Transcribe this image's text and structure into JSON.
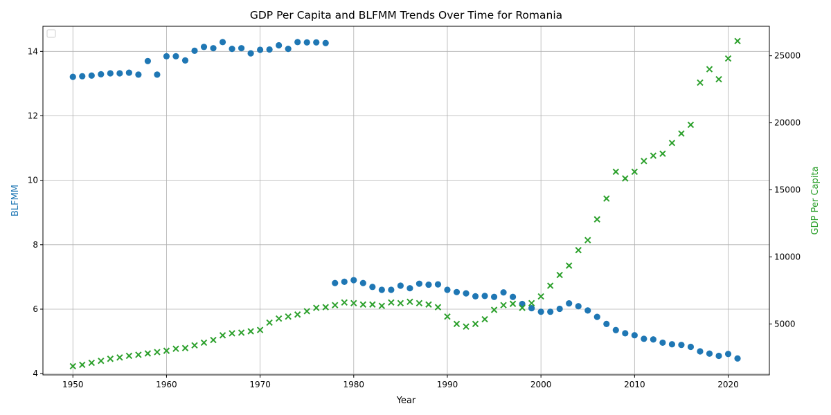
{
  "chart_data": {
    "type": "scatter",
    "title": "GDP Per Capita and BLFMM Trends Over Time for Romania",
    "xlabel": "Year",
    "ylabel_left": "BLFMM",
    "ylabel_right": "GDP Per Capita",
    "x_range": [
      1946.8,
      2024.4
    ],
    "y_left_range": [
      3.96,
      14.78
    ],
    "y_right_range": [
      1200,
      27200
    ],
    "x_ticks": [
      1950,
      1960,
      1970,
      1980,
      1990,
      2000,
      2010,
      2020
    ],
    "y_left_ticks": [
      4,
      6,
      8,
      10,
      12,
      14
    ],
    "y_right_ticks": [
      5000,
      10000,
      15000,
      20000,
      25000
    ],
    "grid": true,
    "legend": "upper-left (empty)",
    "colors": {
      "blfmm": "#1f77b4",
      "gdp": "#2ca02c"
    },
    "series": [
      {
        "name": "BLFMM",
        "axis": "left",
        "marker": "circle",
        "x": [
          1950,
          1951,
          1952,
          1953,
          1954,
          1955,
          1956,
          1957,
          1958,
          1959,
          1960,
          1961,
          1962,
          1963,
          1964,
          1965,
          1966,
          1967,
          1968,
          1969,
          1970,
          1971,
          1972,
          1973,
          1974,
          1975,
          1976,
          1977,
          1978,
          1979,
          1980,
          1981,
          1982,
          1983,
          1984,
          1985,
          1986,
          1987,
          1988,
          1989,
          1990,
          1991,
          1992,
          1993,
          1994,
          1995,
          1996,
          1997,
          1998,
          1999,
          2000,
          2001,
          2002,
          2003,
          2004,
          2005,
          2006,
          2007,
          2008,
          2009,
          2010,
          2011,
          2012,
          2013,
          2014,
          2015,
          2016,
          2017,
          2018,
          2019,
          2020,
          2021
        ],
        "y": [
          13.21,
          13.23,
          13.25,
          13.29,
          13.32,
          13.32,
          13.34,
          13.28,
          13.7,
          13.28,
          13.85,
          13.85,
          13.72,
          14.02,
          14.14,
          14.1,
          14.29,
          14.08,
          14.1,
          13.94,
          14.05,
          14.06,
          14.19,
          14.08,
          14.29,
          14.28,
          14.28,
          14.26,
          6.81,
          6.85,
          6.9,
          6.81,
          6.69,
          6.6,
          6.6,
          6.73,
          6.65,
          6.79,
          6.76,
          6.77,
          6.6,
          6.53,
          6.49,
          6.4,
          6.41,
          6.38,
          6.52,
          6.38,
          6.16,
          6.03,
          5.92,
          5.92,
          6.01,
          6.18,
          6.09,
          5.96,
          5.76,
          5.54,
          5.35,
          5.25,
          5.19,
          5.08,
          5.06,
          4.96,
          4.91,
          4.89,
          4.83,
          4.69,
          4.62,
          4.55,
          4.61,
          4.47
        ]
      },
      {
        "name": "GDP Per Capita",
        "axis": "right",
        "marker": "x",
        "x": [
          1950,
          1951,
          1952,
          1953,
          1954,
          1955,
          1956,
          1957,
          1958,
          1959,
          1960,
          1961,
          1962,
          1963,
          1964,
          1965,
          1966,
          1967,
          1968,
          1969,
          1970,
          1971,
          1972,
          1973,
          1974,
          1975,
          1976,
          1977,
          1978,
          1979,
          1980,
          1981,
          1982,
          1983,
          1984,
          1985,
          1986,
          1987,
          1988,
          1989,
          1990,
          1991,
          1992,
          1993,
          1994,
          1995,
          1996,
          1997,
          1998,
          1999,
          2000,
          2001,
          2002,
          2003,
          2004,
          2005,
          2006,
          2007,
          2008,
          2009,
          2010,
          2011,
          2012,
          2013,
          2014,
          2015,
          2016,
          2017,
          2018,
          2019,
          2020,
          2021
        ],
        "y": [
          1850,
          1950,
          2100,
          2250,
          2400,
          2500,
          2620,
          2700,
          2800,
          2900,
          3000,
          3150,
          3200,
          3400,
          3600,
          3800,
          4150,
          4300,
          4350,
          4450,
          4550,
          5100,
          5400,
          5550,
          5700,
          5950,
          6200,
          6250,
          6400,
          6600,
          6550,
          6450,
          6450,
          6350,
          6600,
          6550,
          6650,
          6550,
          6450,
          6250,
          5550,
          5000,
          4800,
          5000,
          5350,
          6050,
          6400,
          6500,
          6200,
          6550,
          7050,
          7850,
          8650,
          9350,
          10500,
          11250,
          12800,
          14350,
          16350,
          15850,
          16350,
          17150,
          17550,
          17700,
          18500,
          19200,
          19850,
          23000,
          24000,
          23250,
          24800,
          26100
        ]
      }
    ]
  }
}
